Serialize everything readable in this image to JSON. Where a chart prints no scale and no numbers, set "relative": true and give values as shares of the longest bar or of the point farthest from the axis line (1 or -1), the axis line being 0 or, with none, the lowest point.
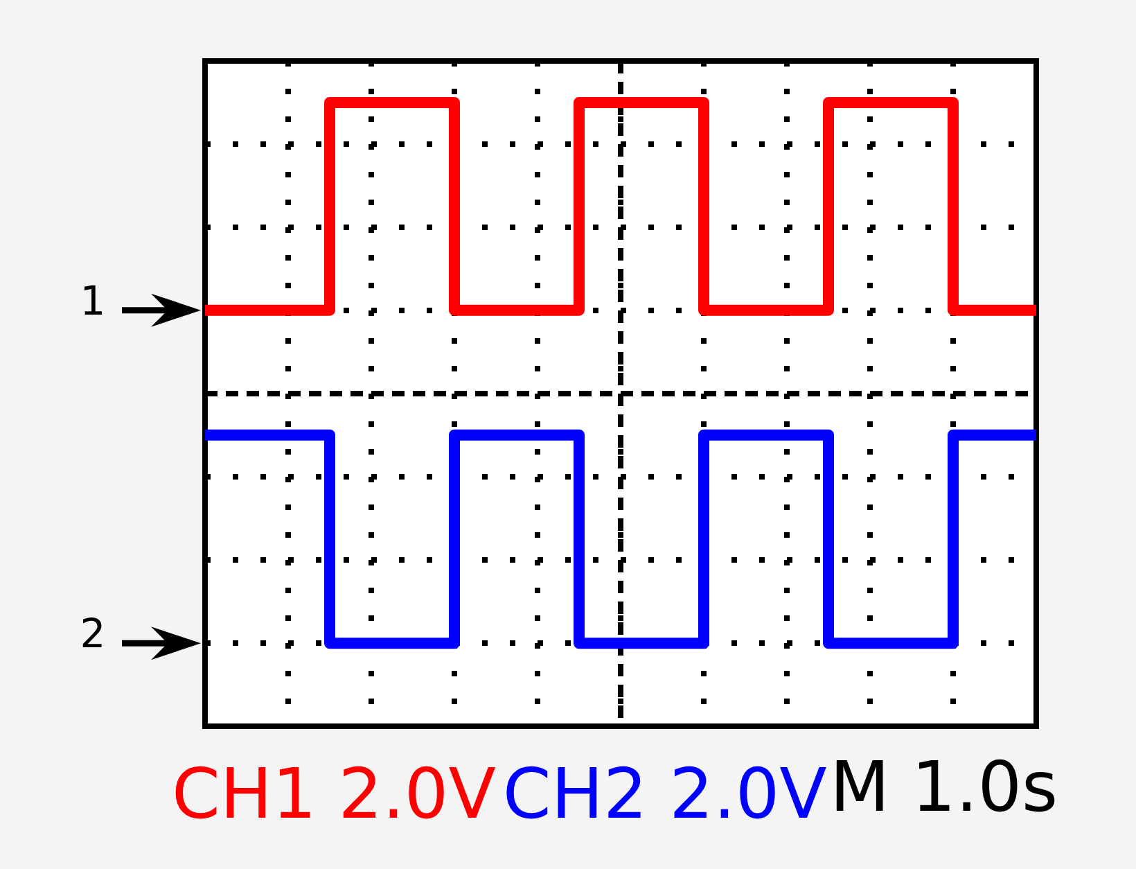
{
  "chart_data": {
    "type": "step",
    "relative": true,
    "categories": [
      null,
      null,
      null,
      null,
      null,
      null,
      null,
      null,
      null,
      null,
      null,
      null,
      null,
      null,
      null,
      null,
      null,
      null,
      null,
      null,
      null
    ],
    "series": [
      {
        "name": "CH1 2.0V",
        "color": "#ff0000",
        "values": [
          0.667,
          0.667,
          0.667,
          1,
          1,
          1,
          0.667,
          0.667,
          0.667,
          1,
          1,
          1,
          0.667,
          0.667,
          0.667,
          1,
          1,
          1,
          0.667,
          0.667,
          0.667
        ]
      },
      {
        "name": "CH2 2.0V",
        "color": "#0000ff",
        "values": [
          0.467,
          0.467,
          0.467,
          0.133,
          0.133,
          0.133,
          0.467,
          0.467,
          0.467,
          0.133,
          0.133,
          0.133,
          0.467,
          0.467,
          0.467,
          0.133,
          0.133,
          0.133,
          0.467,
          0.467,
          0.467
        ]
      }
    ],
    "annotations": [
      "M 1.0s",
      "1",
      "2"
    ],
    "ref_lines": [
      {
        "axis": "y",
        "value": 0.533,
        "color": "#000000",
        "line_style": "dashed"
      }
    ],
    "grid": true,
    "legend": "bottom",
    "marker": "none"
  }
}
